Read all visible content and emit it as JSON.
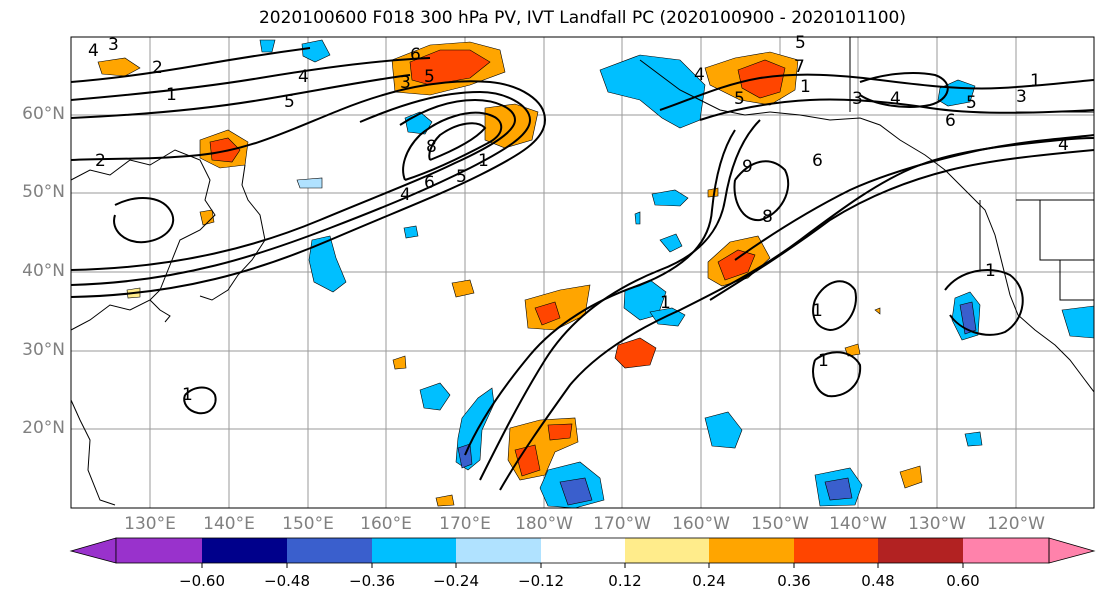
{
  "title": "2020100600 F018 300 hPa PV, IVT Landfall PC (2020100900 - 2020101100)",
  "lat_labels": [
    "60°N",
    "50°N",
    "40°N",
    "30°N",
    "20°N"
  ],
  "lon_labels": [
    "130°E",
    "140°E",
    "150°E",
    "160°E",
    "170°E",
    "180°W",
    "170°W",
    "160°W",
    "150°W",
    "140°W",
    "130°W",
    "120°W"
  ],
  "colorbar": {
    "ticks": [
      "−0.60",
      "−0.48",
      "−0.36",
      "−0.24",
      "−0.12",
      "0.12",
      "0.24",
      "0.36",
      "0.48",
      "0.60"
    ],
    "colors": [
      "#9932cc",
      "#00008b",
      "#3a5fcd",
      "#00bfff",
      "#b0e2ff",
      "#ffffff",
      "#ffec8b",
      "#ffa500",
      "#ff4500",
      "#b22222",
      "#ff82ab"
    ]
  },
  "pv_contour_labels": [
    "4",
    "3",
    "2",
    "1",
    "2",
    "5",
    "4",
    "6",
    "3",
    "5",
    "4",
    "6",
    "5",
    "8",
    "1",
    "9",
    "8",
    "5",
    "4",
    "7",
    "5",
    "1",
    "3",
    "4",
    "6",
    "5",
    "1",
    "3",
    "4",
    "6",
    "1",
    "1",
    "1",
    "1",
    "1"
  ]
}
